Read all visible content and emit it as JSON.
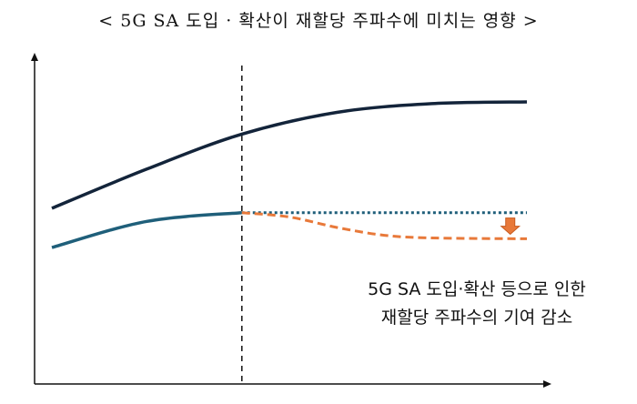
{
  "chart_data": {
    "type": "line",
    "title": "< 5G SA 도입 · 확산이 재할당 주파수에 미치는 영향 >",
    "xlabel": "",
    "ylabel": "",
    "grid": false,
    "series": [
      {
        "key": "upper",
        "style": "solid",
        "color": "#13243a",
        "points": [
          [
            0,
            0.9
          ],
          [
            2,
            1.35
          ],
          [
            4,
            1.75
          ],
          [
            6,
            2.0
          ],
          [
            8,
            2.1
          ],
          [
            10,
            2.12
          ]
        ]
      },
      {
        "key": "lower",
        "style": "solid",
        "color": "#1f5f7a",
        "points": [
          [
            0,
            0.45
          ],
          [
            2,
            0.75
          ],
          [
            4,
            0.85
          ]
        ]
      },
      {
        "key": "baseline",
        "style": "dotted",
        "color": "#1f5f7a",
        "points": [
          [
            4,
            0.85
          ],
          [
            10,
            0.85
          ]
        ]
      },
      {
        "key": "reduced",
        "style": "dashed",
        "color": "#e8793a",
        "points": [
          [
            4,
            0.85
          ],
          [
            5,
            0.8
          ],
          [
            6,
            0.68
          ],
          [
            7,
            0.59
          ],
          [
            8,
            0.56
          ],
          [
            10,
            0.55
          ]
        ]
      }
    ],
    "marker_x": 4,
    "annotation": {
      "lines": [
        "5G SA 도입·확산 등으로 인한",
        "재할당 주파수의 기여 감소"
      ],
      "arrow_color": "#e8793a"
    }
  }
}
